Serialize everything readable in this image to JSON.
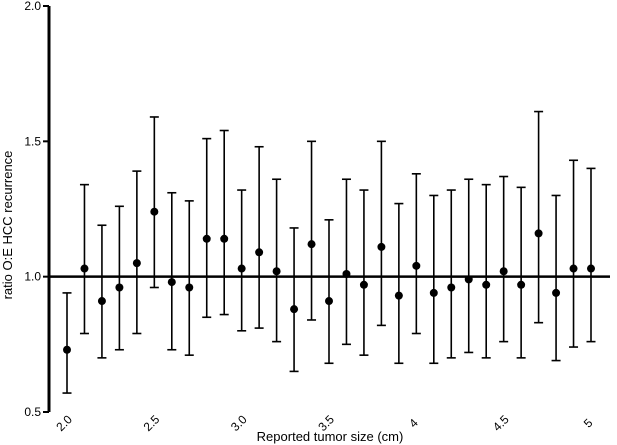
{
  "chart_data": {
    "type": "scatter",
    "title": "",
    "xlabel": "Reported tumor size (cm)",
    "ylabel": "ratio O:E HCC recurrence",
    "xlim": [
      2.0,
      5.0
    ],
    "ylim": [
      0.5,
      2.0
    ],
    "x_ticks": [
      {
        "value": 2.0,
        "label": "2.0"
      },
      {
        "value": 2.5,
        "label": "2.5"
      },
      {
        "value": 3.0,
        "label": "3.0"
      },
      {
        "value": 3.5,
        "label": "3.5"
      },
      {
        "value": 4.0,
        "label": "4"
      },
      {
        "value": 4.5,
        "label": "4.5"
      },
      {
        "value": 5.0,
        "label": "5"
      }
    ],
    "y_ticks": [
      {
        "value": 0.5,
        "label": "0.5"
      },
      {
        "value": 1.0,
        "label": "1.0"
      },
      {
        "value": 1.5,
        "label": "1.5"
      },
      {
        "value": 2.0,
        "label": "2.0"
      }
    ],
    "reference_line": 1.0,
    "grid": false,
    "points": [
      {
        "x": 2.0,
        "y": 0.73,
        "lower": 0.57,
        "upper": 0.94
      },
      {
        "x": 2.1,
        "y": 1.03,
        "lower": 0.79,
        "upper": 1.34
      },
      {
        "x": 2.2,
        "y": 0.91,
        "lower": 0.7,
        "upper": 1.19
      },
      {
        "x": 2.3,
        "y": 0.96,
        "lower": 0.73,
        "upper": 1.26
      },
      {
        "x": 2.4,
        "y": 1.05,
        "lower": 0.79,
        "upper": 1.39
      },
      {
        "x": 2.5,
        "y": 1.24,
        "lower": 0.96,
        "upper": 1.59
      },
      {
        "x": 2.6,
        "y": 0.98,
        "lower": 0.73,
        "upper": 1.31
      },
      {
        "x": 2.7,
        "y": 0.96,
        "lower": 0.71,
        "upper": 1.28
      },
      {
        "x": 2.8,
        "y": 1.14,
        "lower": 0.85,
        "upper": 1.51
      },
      {
        "x": 2.9,
        "y": 1.14,
        "lower": 0.86,
        "upper": 1.54
      },
      {
        "x": 3.0,
        "y": 1.03,
        "lower": 0.8,
        "upper": 1.32
      },
      {
        "x": 3.1,
        "y": 1.09,
        "lower": 0.81,
        "upper": 1.48
      },
      {
        "x": 3.2,
        "y": 1.02,
        "lower": 0.76,
        "upper": 1.36
      },
      {
        "x": 3.3,
        "y": 0.88,
        "lower": 0.65,
        "upper": 1.18
      },
      {
        "x": 3.4,
        "y": 1.12,
        "lower": 0.84,
        "upper": 1.5
      },
      {
        "x": 3.5,
        "y": 0.91,
        "lower": 0.68,
        "upper": 1.21
      },
      {
        "x": 3.6,
        "y": 1.01,
        "lower": 0.75,
        "upper": 1.36
      },
      {
        "x": 3.7,
        "y": 0.97,
        "lower": 0.71,
        "upper": 1.32
      },
      {
        "x": 3.8,
        "y": 1.11,
        "lower": 0.82,
        "upper": 1.5
      },
      {
        "x": 3.9,
        "y": 0.93,
        "lower": 0.68,
        "upper": 1.27
      },
      {
        "x": 4.0,
        "y": 1.04,
        "lower": 0.79,
        "upper": 1.38
      },
      {
        "x": 4.1,
        "y": 0.94,
        "lower": 0.68,
        "upper": 1.3
      },
      {
        "x": 4.2,
        "y": 0.96,
        "lower": 0.7,
        "upper": 1.32
      },
      {
        "x": 4.3,
        "y": 0.99,
        "lower": 0.72,
        "upper": 1.36
      },
      {
        "x": 4.4,
        "y": 0.97,
        "lower": 0.7,
        "upper": 1.34
      },
      {
        "x": 4.5,
        "y": 1.02,
        "lower": 0.76,
        "upper": 1.37
      },
      {
        "x": 4.6,
        "y": 0.97,
        "lower": 0.7,
        "upper": 1.33
      },
      {
        "x": 4.7,
        "y": 1.16,
        "lower": 0.83,
        "upper": 1.61
      },
      {
        "x": 4.8,
        "y": 0.94,
        "lower": 0.69,
        "upper": 1.3
      },
      {
        "x": 4.9,
        "y": 1.03,
        "lower": 0.74,
        "upper": 1.43
      },
      {
        "x": 5.0,
        "y": 1.03,
        "lower": 0.76,
        "upper": 1.4
      }
    ]
  }
}
